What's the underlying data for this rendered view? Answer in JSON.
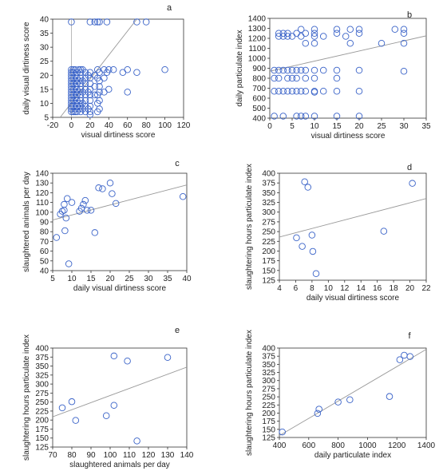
{
  "colors": {
    "marker": "#3a63c8",
    "trend": "#999999",
    "axis": "#333333"
  },
  "chart_data": [
    {
      "panel": "a",
      "type": "scatter",
      "xlabel": "visual dirtiness score",
      "ylabel": "daily visual dirtiness score",
      "xlim": [
        -20,
        120
      ],
      "ylim": [
        5,
        40
      ],
      "xticks": [
        -20,
        0,
        20,
        40,
        60,
        80,
        100,
        120
      ],
      "yticks": [
        5,
        10,
        15,
        20,
        25,
        30,
        35,
        40
      ],
      "trend": [
        [
          -12,
          5
        ],
        [
          70,
          40
        ]
      ],
      "points": [
        [
          0,
          7
        ],
        [
          0,
          8
        ],
        [
          0,
          9
        ],
        [
          0,
          10
        ],
        [
          0,
          11
        ],
        [
          0,
          12
        ],
        [
          0,
          13
        ],
        [
          0,
          14
        ],
        [
          0,
          15
        ],
        [
          0,
          16
        ],
        [
          0,
          17
        ],
        [
          0,
          18
        ],
        [
          0,
          19
        ],
        [
          0,
          20
        ],
        [
          0,
          21
        ],
        [
          0,
          22
        ],
        [
          0,
          39
        ],
        [
          2,
          7
        ],
        [
          2,
          9
        ],
        [
          2,
          11
        ],
        [
          2,
          13
        ],
        [
          2,
          15
        ],
        [
          2,
          17
        ],
        [
          2,
          19
        ],
        [
          2,
          21
        ],
        [
          2,
          22
        ],
        [
          4,
          7
        ],
        [
          4,
          8
        ],
        [
          4,
          10
        ],
        [
          4,
          12
        ],
        [
          4,
          14
        ],
        [
          4,
          16
        ],
        [
          4,
          18
        ],
        [
          4,
          20
        ],
        [
          4,
          22
        ],
        [
          6,
          7
        ],
        [
          6,
          9
        ],
        [
          6,
          11
        ],
        [
          6,
          13
        ],
        [
          6,
          15
        ],
        [
          6,
          17
        ],
        [
          6,
          19
        ],
        [
          6,
          21
        ],
        [
          8,
          8
        ],
        [
          8,
          10
        ],
        [
          8,
          14
        ],
        [
          8,
          18
        ],
        [
          8,
          22
        ],
        [
          10,
          7
        ],
        [
          10,
          9
        ],
        [
          10,
          11
        ],
        [
          10,
          13
        ],
        [
          10,
          15
        ],
        [
          10,
          17
        ],
        [
          10,
          19
        ],
        [
          10,
          21
        ],
        [
          10,
          22
        ],
        [
          12,
          8
        ],
        [
          12,
          10
        ],
        [
          12,
          14
        ],
        [
          12,
          18
        ],
        [
          12,
          22
        ],
        [
          15,
          7
        ],
        [
          15,
          9
        ],
        [
          15,
          11
        ],
        [
          15,
          13
        ],
        [
          15,
          15
        ],
        [
          15,
          17
        ],
        [
          15,
          19
        ],
        [
          15,
          21
        ],
        [
          18,
          8
        ],
        [
          18,
          14
        ],
        [
          18,
          20
        ],
        [
          20,
          6
        ],
        [
          20,
          7
        ],
        [
          20,
          9
        ],
        [
          20,
          11
        ],
        [
          20,
          13
        ],
        [
          20,
          15
        ],
        [
          20,
          17
        ],
        [
          20,
          19
        ],
        [
          20,
          21
        ],
        [
          20,
          39
        ],
        [
          25,
          13
        ],
        [
          25,
          16
        ],
        [
          25,
          20
        ],
        [
          25,
          39
        ],
        [
          28,
          7
        ],
        [
          28,
          10
        ],
        [
          28,
          13
        ],
        [
          28,
          19
        ],
        [
          28,
          22
        ],
        [
          28,
          39
        ],
        [
          30,
          8
        ],
        [
          30,
          11
        ],
        [
          30,
          14
        ],
        [
          30,
          16
        ],
        [
          30,
          18
        ],
        [
          30,
          21
        ],
        [
          30,
          39
        ],
        [
          35,
          14
        ],
        [
          35,
          19
        ],
        [
          35,
          22
        ],
        [
          38,
          21
        ],
        [
          38,
          39
        ],
        [
          40,
          22
        ],
        [
          40,
          15
        ],
        [
          45,
          22
        ],
        [
          55,
          21
        ],
        [
          60,
          22
        ],
        [
          60,
          14
        ],
        [
          70,
          21
        ],
        [
          70,
          39
        ],
        [
          80,
          39
        ],
        [
          100,
          22
        ]
      ]
    },
    {
      "panel": "b",
      "type": "scatter",
      "xlabel": "visual dirtiness score",
      "ylabel": "daily particulate index",
      "xlim": [
        0,
        35
      ],
      "ylim": [
        400,
        1400
      ],
      "xticks": [
        0,
        5,
        10,
        15,
        20,
        25,
        30,
        35
      ],
      "yticks": [
        400,
        500,
        600,
        700,
        800,
        900,
        1000,
        1100,
        1200,
        1300,
        1400
      ],
      "trend": [
        [
          0,
          870
        ],
        [
          35,
          1225
        ]
      ],
      "points": [
        [
          1,
          420
        ],
        [
          1,
          670
        ],
        [
          1,
          800
        ],
        [
          1,
          880
        ],
        [
          2,
          670
        ],
        [
          2,
          800
        ],
        [
          2,
          880
        ],
        [
          2,
          1220
        ],
        [
          2,
          1250
        ],
        [
          3,
          420
        ],
        [
          3,
          670
        ],
        [
          3,
          880
        ],
        [
          3,
          1220
        ],
        [
          3,
          1250
        ],
        [
          4,
          670
        ],
        [
          4,
          800
        ],
        [
          4,
          880
        ],
        [
          4,
          1220
        ],
        [
          4,
          1250
        ],
        [
          5,
          670
        ],
        [
          5,
          800
        ],
        [
          5,
          880
        ],
        [
          5,
          1220
        ],
        [
          6,
          420
        ],
        [
          6,
          670
        ],
        [
          6,
          800
        ],
        [
          6,
          880
        ],
        [
          6,
          1250
        ],
        [
          7,
          420
        ],
        [
          7,
          670
        ],
        [
          7,
          880
        ],
        [
          7,
          1220
        ],
        [
          7,
          1290
        ],
        [
          8,
          420
        ],
        [
          8,
          670
        ],
        [
          8,
          800
        ],
        [
          8,
          880
        ],
        [
          8,
          1150
        ],
        [
          8,
          1250
        ],
        [
          10,
          420
        ],
        [
          10,
          660
        ],
        [
          10,
          670
        ],
        [
          10,
          800
        ],
        [
          10,
          880
        ],
        [
          10,
          1150
        ],
        [
          10,
          1220
        ],
        [
          10,
          1250
        ],
        [
          10,
          1290
        ],
        [
          12,
          670
        ],
        [
          12,
          880
        ],
        [
          12,
          1220
        ],
        [
          15,
          420
        ],
        [
          15,
          670
        ],
        [
          15,
          800
        ],
        [
          15,
          880
        ],
        [
          15,
          1250
        ],
        [
          15,
          1290
        ],
        [
          17,
          1220
        ],
        [
          18,
          1150
        ],
        [
          18,
          1290
        ],
        [
          20,
          420
        ],
        [
          20,
          670
        ],
        [
          20,
          880
        ],
        [
          20,
          1250
        ],
        [
          20,
          1290
        ],
        [
          25,
          1150
        ],
        [
          28,
          1290
        ],
        [
          30,
          870
        ],
        [
          30,
          1150
        ],
        [
          30,
          1250
        ],
        [
          30,
          1290
        ]
      ]
    },
    {
      "panel": "c",
      "type": "scatter",
      "xlabel": "daily visual dirtiness score",
      "ylabel": "slaughtered animals per day",
      "xlim": [
        5,
        40
      ],
      "ylim": [
        40,
        140
      ],
      "xticks": [
        5,
        10,
        15,
        20,
        25,
        30,
        35,
        40
      ],
      "yticks": [
        40,
        50,
        60,
        70,
        80,
        90,
        100,
        110,
        120,
        130,
        140
      ],
      "trend": [
        [
          5,
          92
        ],
        [
          40,
          128
        ]
      ],
      "points": [
        [
          6,
          74
        ],
        [
          7,
          98
        ],
        [
          7.5,
          101
        ],
        [
          8,
          108
        ],
        [
          8,
          102
        ],
        [
          8.2,
          81
        ],
        [
          8.5,
          94
        ],
        [
          8.8,
          114
        ],
        [
          9.2,
          47
        ],
        [
          10,
          110
        ],
        [
          12,
          101
        ],
        [
          12.5,
          104
        ],
        [
          13,
          108
        ],
        [
          13.5,
          112
        ],
        [
          14,
          102
        ],
        [
          15,
          102
        ],
        [
          16,
          79
        ],
        [
          17,
          125
        ],
        [
          18,
          124
        ],
        [
          20,
          130
        ],
        [
          20.5,
          119
        ],
        [
          21.5,
          109
        ],
        [
          39,
          116
        ]
      ]
    },
    {
      "panel": "d",
      "type": "scatter",
      "xlabel": "daily visual dirtiness score",
      "ylabel": "slaughtering hours particulate index",
      "xlim": [
        4,
        22
      ],
      "ylim": [
        125,
        400
      ],
      "xticks": [
        4,
        6,
        8,
        10,
        12,
        14,
        16,
        18,
        20,
        22
      ],
      "yticks": [
        125,
        150,
        175,
        200,
        225,
        250,
        275,
        300,
        325,
        350,
        375,
        400
      ],
      "trend": [
        [
          4,
          236
        ],
        [
          22,
          335
        ]
      ],
      "points": [
        [
          6.1,
          234
        ],
        [
          6.8,
          212
        ],
        [
          7.1,
          378
        ],
        [
          7.5,
          364
        ],
        [
          8,
          241
        ],
        [
          8.1,
          199
        ],
        [
          8.5,
          142
        ],
        [
          16.8,
          251
        ],
        [
          20.3,
          374
        ]
      ]
    },
    {
      "panel": "e",
      "type": "scatter",
      "xlabel": "slaughtered animals per day",
      "ylabel": "slaughtering hours particulate index",
      "xlim": [
        70,
        140
      ],
      "ylim": [
        125,
        400
      ],
      "xticks": [
        70,
        80,
        90,
        100,
        110,
        120,
        130,
        140
      ],
      "yticks": [
        125,
        150,
        175,
        200,
        225,
        250,
        275,
        300,
        325,
        350,
        375,
        400
      ],
      "trend": [
        [
          70,
          209
        ],
        [
          140,
          347
        ]
      ],
      "points": [
        [
          75,
          234
        ],
        [
          80,
          251
        ],
        [
          82,
          199
        ],
        [
          98,
          212
        ],
        [
          102,
          378
        ],
        [
          102,
          241
        ],
        [
          109,
          364
        ],
        [
          114,
          142
        ],
        [
          130,
          374
        ]
      ]
    },
    {
      "panel": "f",
      "type": "scatter",
      "xlabel": "daily particulate index",
      "ylabel": "slaughtering hours particulate index",
      "xlim": [
        400,
        1400
      ],
      "ylim": [
        125,
        400
      ],
      "xticks": [
        400,
        600,
        800,
        1000,
        1200,
        1400
      ],
      "yticks": [
        125,
        150,
        175,
        200,
        225,
        250,
        275,
        300,
        325,
        350,
        375,
        400
      ],
      "trend": [
        [
          405,
          132
        ],
        [
          1400,
          396
        ]
      ],
      "points": [
        [
          420,
          142
        ],
        [
          660,
          199
        ],
        [
          670,
          212
        ],
        [
          800,
          234
        ],
        [
          880,
          241
        ],
        [
          1150,
          251
        ],
        [
          1220,
          364
        ],
        [
          1250,
          378
        ],
        [
          1290,
          374
        ]
      ]
    }
  ]
}
